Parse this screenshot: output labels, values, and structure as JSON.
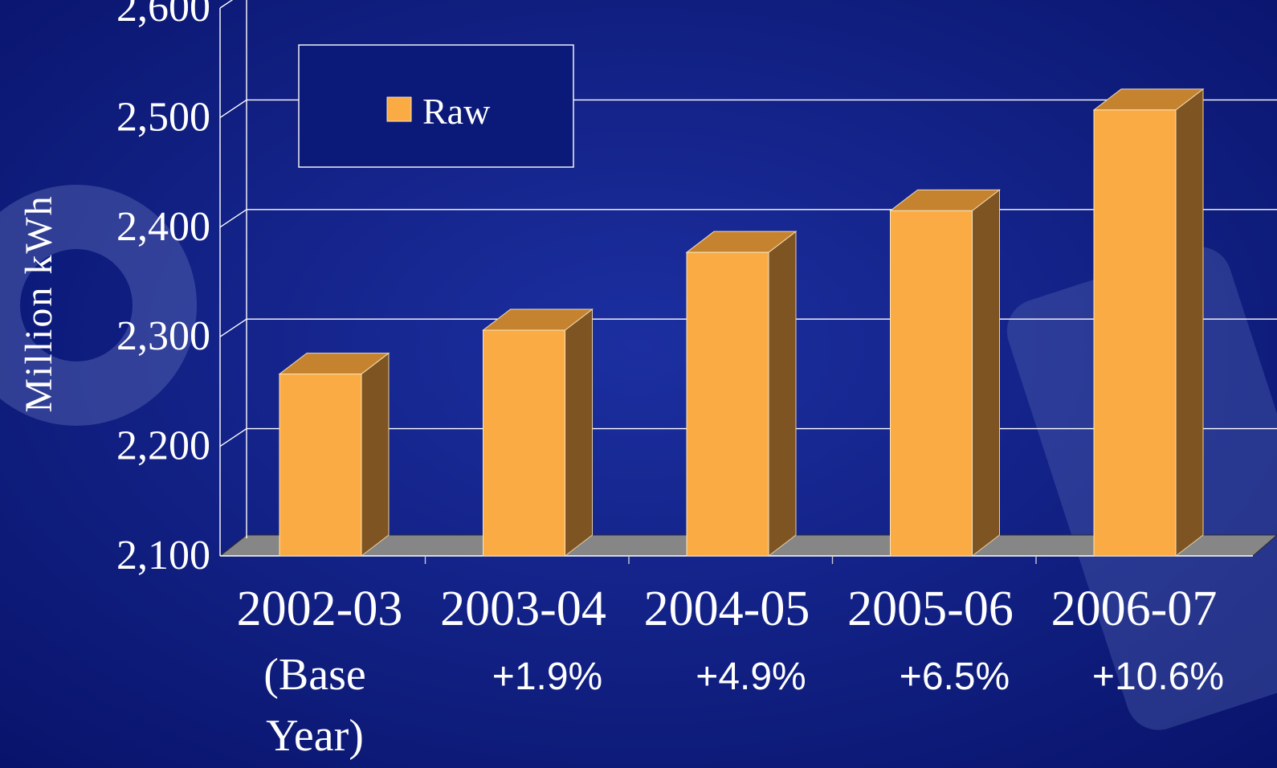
{
  "colors": {
    "background": "#0b1a78",
    "bar_front": "#fbab44",
    "bar_top": "#c5832f",
    "bar_side": "#7e5422",
    "floor": "#868686",
    "gridline": "#ffffff",
    "text": "#ffffff"
  },
  "chart_data": {
    "type": "bar",
    "style": "3d-column",
    "ylabel": "Million kWh",
    "ylim": [
      2100,
      2600
    ],
    "yticks": [
      2100,
      2200,
      2300,
      2400,
      2500,
      2600
    ],
    "ytick_labels": [
      "2,100",
      "2,200",
      "2,300",
      "2,400",
      "2,500",
      "2,600"
    ],
    "grid": true,
    "legend_position": "top-left",
    "categories": [
      "2002-03",
      "2003-04",
      "2004-05",
      "2005-06",
      "2006-07"
    ],
    "series": [
      {
        "name": "Raw",
        "values": [
          2266,
          2306,
          2377,
          2415,
          2507
        ]
      }
    ],
    "annotations": [
      {
        "category": "2002-03",
        "lines": [
          "(Base",
          "Year)"
        ]
      },
      {
        "category": "2003-04",
        "lines": [
          "+1.9%"
        ]
      },
      {
        "category": "2004-05",
        "lines": [
          "+4.9%"
        ]
      },
      {
        "category": "2005-06",
        "lines": [
          "+6.5%"
        ]
      },
      {
        "category": "2006-07",
        "lines": [
          "+10.6%"
        ]
      }
    ]
  }
}
